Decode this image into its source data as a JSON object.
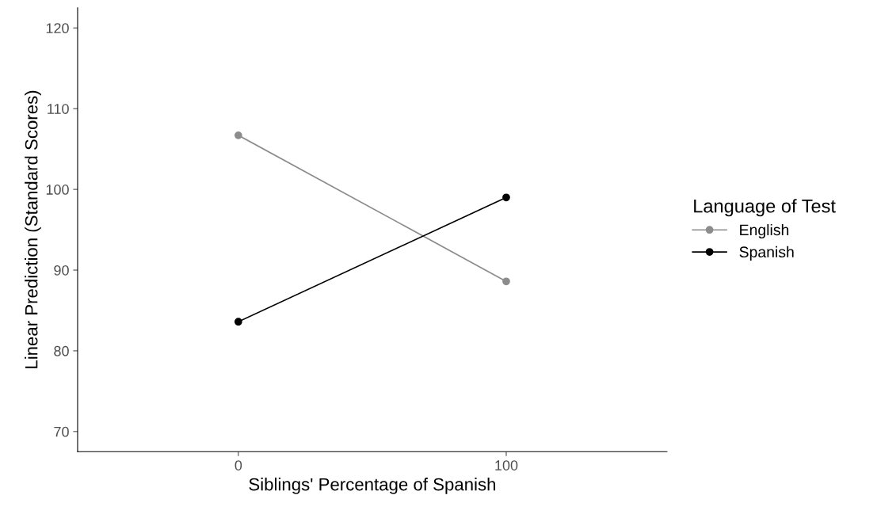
{
  "chart_data": {
    "type": "line",
    "xlabel": "Siblings' Percentage of Spanish",
    "ylabel": "Linear Prediction (Standard Scores)",
    "legend_title": "Language of Test",
    "x": [
      0,
      100
    ],
    "series": [
      {
        "name": "English",
        "color": "#8c8c8c",
        "values": [
          106.7,
          88.6
        ]
      },
      {
        "name": "Spanish",
        "color": "#000000",
        "values": [
          83.6,
          99.0
        ]
      }
    ],
    "xlim": [
      -60,
      160
    ],
    "xticks": [
      0,
      100
    ],
    "ylim": [
      67.5,
      122.5
    ],
    "yticks": [
      70,
      80,
      90,
      100,
      110,
      120
    ],
    "marker": "circle",
    "line_style": "solid",
    "grid": false,
    "legend": "right"
  }
}
